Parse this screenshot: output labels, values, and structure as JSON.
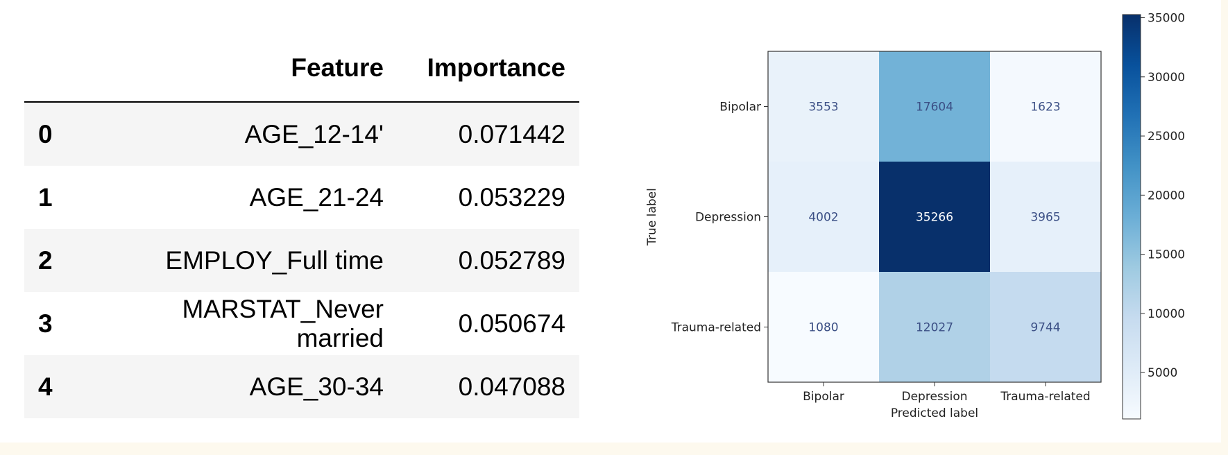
{
  "table": {
    "headers": {
      "index": "",
      "feature": "Feature",
      "importance": "Importance"
    },
    "rows": [
      {
        "index": "0",
        "feature": "AGE_12-14'",
        "importance": "0.071442"
      },
      {
        "index": "1",
        "feature": "AGE_21-24",
        "importance": "0.053229"
      },
      {
        "index": "2",
        "feature": "EMPLOY_Full time",
        "importance": "0.052789"
      },
      {
        "index": "3",
        "feature": "MARSTAT_Never married",
        "importance": "0.050674"
      },
      {
        "index": "4",
        "feature": "AGE_30-34",
        "importance": "0.047088"
      }
    ]
  },
  "chart_data": {
    "type": "heatmap",
    "title": "",
    "xlabel": "Predicted label",
    "ylabel": "True label",
    "x_categories": [
      "Bipolar",
      "Depression",
      "Trauma-related"
    ],
    "y_categories": [
      "Bipolar",
      "Depression",
      "Trauma-related"
    ],
    "values": [
      [
        3553,
        17604,
        1623
      ],
      [
        4002,
        35266,
        3965
      ],
      [
        1080,
        12027,
        9744
      ]
    ],
    "colormap": "Blues",
    "colorbar": {
      "ticks": [
        5000,
        10000,
        15000,
        20000,
        25000,
        30000,
        35000
      ],
      "range": [
        1080,
        35266
      ]
    },
    "colors": {
      "low": "#f7fbff",
      "high": "#08306b",
      "text_on_light": "#3b4f85",
      "text_on_dark": "#ffffff"
    }
  }
}
